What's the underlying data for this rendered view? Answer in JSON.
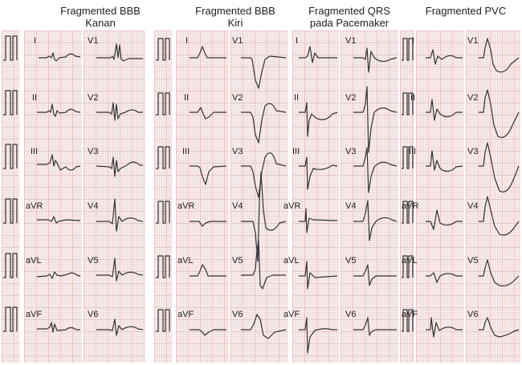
{
  "panels": [
    {
      "title_line1": "Fragmented BBB",
      "title_line2": "Kanan",
      "limb_leads": [
        "I",
        "II",
        "III",
        "aVR",
        "aVL",
        "aVF"
      ],
      "chest_leads": [
        "V1",
        "V2",
        "V3",
        "V4",
        "V5",
        "V6"
      ]
    },
    {
      "title_line1": "Fragmented BBB",
      "title_line2": "Kiri",
      "limb_leads": [
        "I",
        "II",
        "III",
        "aVR",
        "aVL",
        "aVF"
      ],
      "chest_leads": [
        "V1",
        "V2",
        "V3",
        "V4",
        "V5",
        "V6"
      ]
    },
    {
      "title_line1": "Fragmented QRS",
      "title_line2": "pada Pacemaker",
      "limb_leads": [
        "I",
        "II",
        "III",
        "aVR",
        "aVL",
        "aVF"
      ],
      "chest_leads": [
        "V1",
        "V2",
        "V3",
        "V4",
        "V5",
        "V6"
      ]
    },
    {
      "title_line1": "Fragmented PVC",
      "title_line2": "",
      "limb_leads": [
        "I",
        "II",
        "III",
        "aVR",
        "aVL",
        "aVF"
      ],
      "chest_leads": [
        "V1",
        "V2",
        "V3",
        "V4",
        "V5",
        "V6"
      ]
    }
  ],
  "colors": {
    "grid_major": "#e8c3c3",
    "grid_minor": "#f2dede",
    "paper": "#f7efef",
    "trace": "#333333"
  }
}
